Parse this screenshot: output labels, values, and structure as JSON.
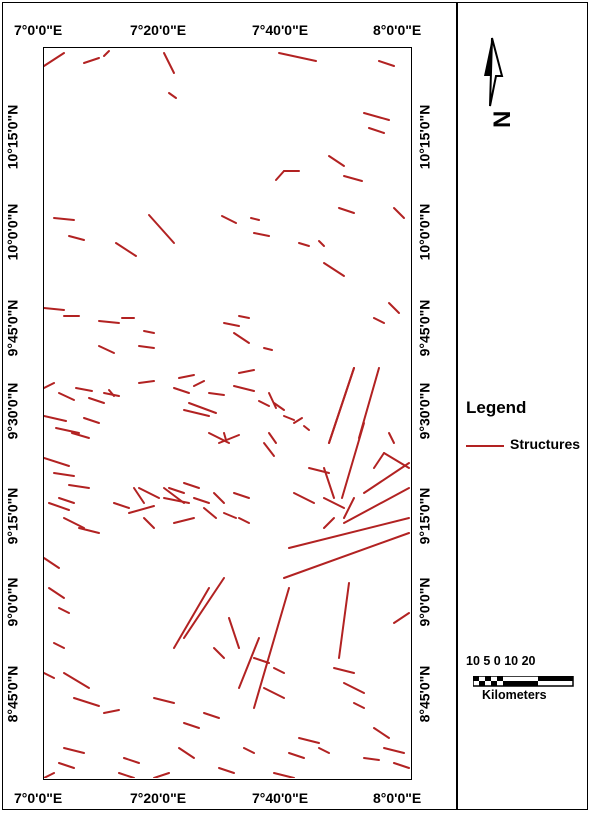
{
  "map": {
    "top_lon_labels": [
      "7°0'0\"E",
      "7°20'0\"E",
      "7°40'0\"E",
      "8°0'0\"E"
    ],
    "bottom_lon_labels": [
      "7°0'0\"E",
      "7°20'0\"E",
      "7°40'0\"E",
      "8°0'0\"E"
    ],
    "left_lat_labels": [
      "10°15'0\"N",
      "10°0'0\"N",
      "9°45'0\"N",
      "9°30'0\"N",
      "9°15'0\"N",
      "9°0'0\"N",
      "8°45'0\"N"
    ],
    "right_lat_labels": [
      "10°15'0\"N",
      "10°0'0\"N",
      "9°45'0\"N",
      "9°30'0\"N",
      "9°15'0\"N",
      "9°0'0\"N",
      "8°45'0\"N"
    ],
    "line_color": "#b22222"
  },
  "north_arrow": {
    "label": "N",
    "icon": "north-arrow-icon"
  },
  "legend": {
    "title": "Legend",
    "items": [
      {
        "label": "Structures",
        "color": "#b22222"
      }
    ]
  },
  "scale_bar": {
    "labels": "10 5  0      10     20",
    "unit": "Kilometers"
  }
}
